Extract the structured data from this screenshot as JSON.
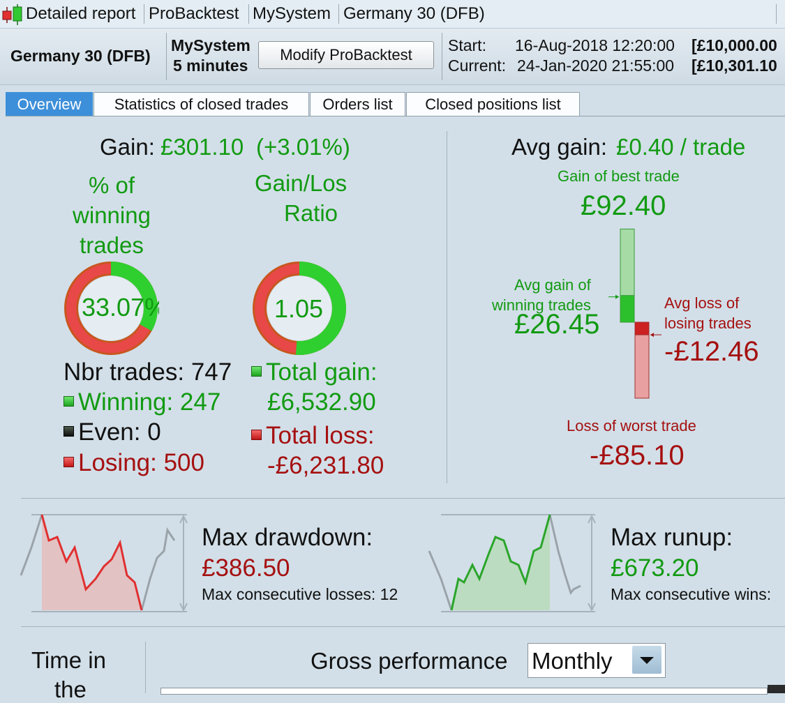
{
  "window": {
    "title_parts": [
      "Detailed report",
      "ProBacktest",
      "MySystem",
      "Germany 30 (DFB)"
    ]
  },
  "infobar": {
    "instrument": "Germany 30 (DFB)",
    "system_name": "MySystem",
    "timeframe": "5 minutes",
    "modify_button": "Modify ProBacktest",
    "start_label": "Start:",
    "start_date": "16-Aug-2018 12:20:00",
    "start_capital": "[£10,000.00",
    "current_label": "Current:",
    "current_date": "24-Jan-2020 21:55:00",
    "current_capital": "[£10,301.10"
  },
  "tabs": [
    {
      "label": "Overview",
      "active": true
    },
    {
      "label": "Statistics of closed trades",
      "active": false
    },
    {
      "label": "Orders list",
      "active": false
    },
    {
      "label": "Closed positions list",
      "active": false
    }
  ],
  "overview": {
    "gain_label": "Gain:",
    "gain_value": "£301.10",
    "gain_pct": "(+3.01%)",
    "winning_title_1": "% of",
    "winning_title_2": "winning",
    "winning_title_3": "trades",
    "winning_pct_text": "33.07%",
    "winning_pct": 33.07,
    "ratio_title_1": "Gain/Loss",
    "ratio_title_2": "Ratio",
    "ratio_text": "1.05",
    "ratio_green_fraction": 0.512,
    "nbr_trades": "Nbr trades: 747",
    "winning": "Winning: 247",
    "even": "Even: 0",
    "losing": "Losing: 500",
    "total_gain_label": "Total gain:",
    "total_gain": "£6,532.90",
    "total_loss_label": "Total loss:",
    "total_loss": "-£6,231.80",
    "avg_gain_label": "Avg gain:",
    "avg_gain_value": "£0.40 / trade",
    "best_trade_label": "Gain of best trade",
    "best_trade": "£92.40",
    "avg_win_label_1": "Avg gain of",
    "avg_win_label_2": "winning trades",
    "avg_win": "£26.45",
    "avg_loss_label_1": "Avg loss of",
    "avg_loss_label_2": "losing trades",
    "avg_loss": "-£12.46",
    "worst_trade_label": "Loss of worst trade",
    "worst_trade": "-£85.10",
    "best_trade_value": 92.4,
    "avg_win_value": 26.45,
    "avg_loss_value": -12.46,
    "worst_trade_value": -85.1
  },
  "drawdown": {
    "title": "Max drawdown:",
    "value": "£386.50",
    "sub": "Max consecutive losses: 12"
  },
  "runup": {
    "title": "Max runup:",
    "value": "£673.20",
    "sub": "Max consecutive wins:"
  },
  "bottom": {
    "time_in_1": "Time in",
    "time_in_2": "the",
    "gross_label": "Gross performance",
    "period_selected": "Monthly"
  },
  "colors": {
    "gain_green": "#129a12",
    "loss_red": "#a51010",
    "tab_active": "#3d8fd9"
  }
}
